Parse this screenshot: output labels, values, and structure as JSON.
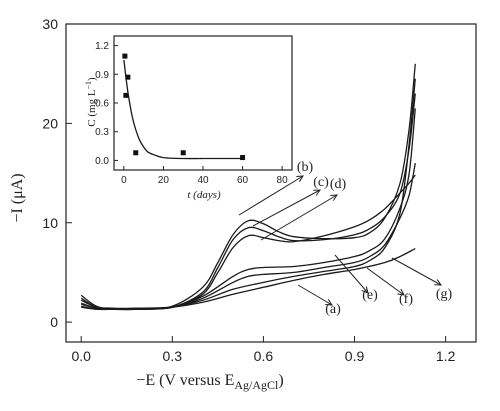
{
  "chart_data": [
    {
      "type": "line",
      "xlabel": "−E (V versus E",
      "xlabel_sub": "Ag/AgCl",
      "xlabel_close": ")",
      "ylabel": "−I (μA)",
      "xlim": [
        -0.05,
        1.3
      ],
      "ylim": [
        -2,
        30
      ],
      "x_ticks": [
        0.0,
        0.3,
        0.6,
        0.9,
        1.2
      ],
      "x_tick_labels": [
        "0.0",
        "0.3",
        "0.6",
        "0.9",
        "1.2"
      ],
      "y_ticks": [
        0,
        10,
        20,
        30
      ],
      "y_tick_labels": [
        "0",
        "10",
        "20",
        "30"
      ],
      "series": [
        {
          "name": "(a)",
          "x": [
            0.0,
            0.05,
            0.1,
            0.2,
            0.3,
            0.4,
            0.5,
            0.6,
            0.7,
            0.8,
            0.9,
            1.0,
            1.05,
            1.1
          ],
          "y": [
            1.6,
            1.3,
            1.3,
            1.4,
            1.5,
            2.0,
            2.8,
            3.5,
            4.2,
            4.8,
            5.3,
            6.0,
            6.6,
            7.4
          ]
        },
        {
          "name": "(b)",
          "x": [
            0.0,
            0.05,
            0.1,
            0.2,
            0.3,
            0.4,
            0.45,
            0.5,
            0.55,
            0.6,
            0.65,
            0.7,
            0.8,
            0.9,
            0.95,
            1.0,
            1.05,
            1.08,
            1.1
          ],
          "y": [
            2.7,
            1.6,
            1.4,
            1.4,
            1.6,
            3.5,
            6.0,
            8.8,
            10.2,
            9.9,
            9.1,
            8.6,
            8.4,
            8.5,
            9.0,
            10.5,
            14.0,
            19.5,
            26.0
          ]
        },
        {
          "name": "(c)",
          "x": [
            0.0,
            0.05,
            0.1,
            0.2,
            0.3,
            0.4,
            0.45,
            0.5,
            0.55,
            0.6,
            0.65,
            0.7,
            0.8,
            0.9,
            0.95,
            1.0,
            1.05,
            1.08,
            1.1
          ],
          "y": [
            2.4,
            1.5,
            1.3,
            1.4,
            1.5,
            3.0,
            5.5,
            8.3,
            9.5,
            9.2,
            8.6,
            8.2,
            8.3,
            8.8,
            9.4,
            10.6,
            13.0,
            17.5,
            23.0
          ]
        },
        {
          "name": "(d)",
          "x": [
            0.0,
            0.05,
            0.1,
            0.2,
            0.3,
            0.4,
            0.45,
            0.5,
            0.55,
            0.6,
            0.65,
            0.7,
            0.8,
            0.9,
            0.95,
            1.0,
            1.05,
            1.08,
            1.1
          ],
          "y": [
            2.2,
            1.5,
            1.3,
            1.3,
            1.5,
            2.8,
            5.0,
            7.5,
            8.7,
            8.5,
            8.2,
            8.1,
            8.7,
            9.6,
            10.3,
            11.4,
            13.0,
            14.0,
            14.8
          ]
        },
        {
          "name": "(e)",
          "x": [
            0.0,
            0.05,
            0.1,
            0.2,
            0.3,
            0.4,
            0.5,
            0.55,
            0.6,
            0.7,
            0.8,
            0.9,
            0.95,
            1.0,
            1.05,
            1.08,
            1.1
          ],
          "y": [
            1.9,
            1.4,
            1.3,
            1.3,
            1.5,
            2.6,
            4.6,
            5.3,
            5.5,
            5.6,
            6.0,
            6.6,
            7.2,
            8.4,
            11.5,
            15.0,
            21.5
          ]
        },
        {
          "name": "(f)",
          "x": [
            0.0,
            0.05,
            0.1,
            0.2,
            0.3,
            0.4,
            0.5,
            0.55,
            0.6,
            0.7,
            0.8,
            0.9,
            0.95,
            1.0,
            1.05,
            1.08,
            1.1
          ],
          "y": [
            1.8,
            1.4,
            1.3,
            1.3,
            1.5,
            2.4,
            4.0,
            4.6,
            4.8,
            5.0,
            5.5,
            6.0,
            6.6,
            7.8,
            10.5,
            12.8,
            16.0
          ]
        },
        {
          "name": "(g)",
          "x": [
            0.0,
            0.05,
            0.1,
            0.2,
            0.3,
            0.4,
            0.5,
            0.6,
            0.7,
            0.8,
            0.9,
            0.95,
            1.0,
            1.05,
            1.08,
            1.1
          ],
          "y": [
            1.5,
            1.3,
            1.3,
            1.3,
            1.5,
            2.2,
            3.3,
            4.0,
            4.6,
            5.1,
            5.6,
            6.2,
            7.5,
            11.0,
            18.0,
            24.5
          ]
        }
      ],
      "annotations": [
        {
          "text": "(a)",
          "series": "(a)"
        },
        {
          "text": "(b)",
          "series": "(b)"
        },
        {
          "text": "(c)",
          "series": "(c)"
        },
        {
          "text": "(d)",
          "series": "(d)"
        },
        {
          "text": "(e)",
          "series": "(e)"
        },
        {
          "text": "(f)",
          "series": "(f)"
        },
        {
          "text": "(g)",
          "series": "(g)"
        }
      ]
    },
    {
      "type": "scatter",
      "xlabel": "t (days)",
      "ylabel": "C (mg L",
      "ylabel_sup": "−1",
      "ylabel_close": ")",
      "xlim": [
        -5,
        85
      ],
      "ylim": [
        -0.1,
        1.3
      ],
      "x_ticks": [
        0,
        20,
        40,
        60,
        80
      ],
      "x_tick_labels": [
        "0",
        "20",
        "40",
        "60",
        "80"
      ],
      "y_ticks": [
        0.0,
        0.3,
        0.6,
        0.9,
        1.2
      ],
      "y_tick_labels": [
        "0.0",
        "0.3",
        "0.6",
        "0.9",
        "1.2"
      ],
      "points": {
        "x": [
          0.5,
          1,
          2,
          6,
          30,
          60
        ],
        "y": [
          1.09,
          0.68,
          0.87,
          0.08,
          0.08,
          0.03
        ]
      },
      "fit": {
        "x": [
          0,
          2,
          4,
          6,
          8,
          10,
          12,
          15,
          20,
          30,
          40,
          50,
          60
        ],
        "y": [
          1.05,
          0.72,
          0.48,
          0.32,
          0.21,
          0.14,
          0.09,
          0.06,
          0.03,
          0.02,
          0.02,
          0.02,
          0.02
        ]
      }
    }
  ]
}
